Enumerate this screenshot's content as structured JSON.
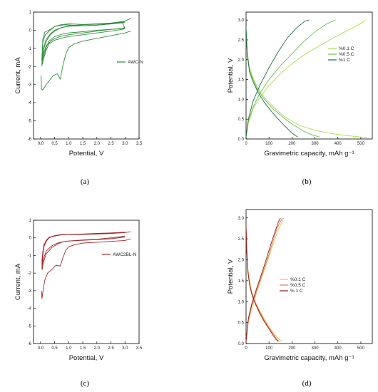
{
  "figure": {
    "captions": [
      "(a)",
      "(b)",
      "(c)",
      "(d)"
    ]
  },
  "chart_data": [
    {
      "id": "a",
      "type": "line",
      "caption": "(a)",
      "xlabel": "Potential, V",
      "ylabel": "Current, mA",
      "xlim": [
        -0.25,
        3.5
      ],
      "ylim": [
        -6,
        1
      ],
      "xticks": [
        0.0,
        0.5,
        1.0,
        1.5,
        2.0,
        2.5,
        3.0,
        3.5
      ],
      "yticks": [
        1,
        0,
        -1,
        -2,
        -3,
        -4,
        -5,
        -6
      ],
      "grid": false,
      "legend_position": "right",
      "series": [
        {
          "name": "AWC-N",
          "color": "#2e8b3c",
          "curves": [
            {
              "x": [
                0.02,
                0.03,
                0.06,
                0.1,
                0.2,
                0.3,
                0.45,
                0.6,
                0.7,
                0.8,
                0.9,
                1.0,
                1.2,
                1.5,
                2.0,
                2.5,
                3.0,
                3.2
              ],
              "y": [
                -2.5,
                -3.2,
                -3.3,
                -3.25,
                -3.0,
                -2.8,
                -2.5,
                -2.4,
                -2.7,
                -1.9,
                -1.3,
                -0.95,
                -0.75,
                -0.6,
                -0.45,
                -0.3,
                -0.15,
                -0.05
              ]
            },
            {
              "x": [
                0.05,
                0.05,
                0.1,
                0.2,
                0.4,
                0.6,
                0.8,
                1.0,
                1.5,
                2.0,
                2.5,
                2.9,
                3.0
              ],
              "y": [
                -1.6,
                -1.7,
                -1.3,
                -0.85,
                -0.55,
                -0.4,
                -0.3,
                -0.25,
                -0.15,
                -0.05,
                0.05,
                0.1,
                0.15
              ]
            },
            {
              "x": [
                0.05,
                0.07,
                0.1,
                0.2,
                0.3,
                0.5,
                0.8,
                1.0,
                1.5,
                2.0,
                2.5,
                2.9,
                3.0
              ],
              "y": [
                -1.9,
                -1.85,
                -1.6,
                -1.1,
                -0.75,
                -0.55,
                -0.42,
                -0.35,
                -0.25,
                -0.15,
                -0.05,
                0.05,
                0.1
              ]
            },
            {
              "x": [
                0.05,
                0.05,
                0.1,
                0.2,
                0.3,
                0.5,
                0.8,
                1.0,
                1.5,
                2.0,
                2.5,
                3.0
              ],
              "y": [
                -2.0,
                -1.8,
                -1.45,
                -0.95,
                -0.6,
                -0.35,
                -0.2,
                -0.15,
                -0.08,
                0.0,
                0.05,
                0.1
              ]
            },
            {
              "x": [
                0.05,
                0.08,
                0.15,
                0.3,
                0.5,
                0.7,
                0.9,
                1.1,
                1.5,
                2.0,
                2.5,
                3.0
              ],
              "y": [
                -1.6,
                -0.5,
                -0.1,
                0.0,
                0.2,
                0.27,
                0.3,
                0.28,
                0.25,
                0.28,
                0.35,
                0.42
              ]
            },
            {
              "x": [
                0.05,
                0.08,
                0.15,
                0.3,
                0.5,
                0.7,
                1.0,
                1.5,
                2.0,
                2.5,
                3.0,
                3.2
              ],
              "y": [
                -1.5,
                -0.7,
                -0.3,
                -0.05,
                0.2,
                0.3,
                0.35,
                0.32,
                0.35,
                0.4,
                0.5,
                0.65
              ]
            },
            {
              "x": [
                0.05,
                0.1,
                0.2,
                0.35,
                0.5,
                0.75,
                1.0,
                1.5,
                2.0,
                2.5,
                2.95,
                3.0
              ],
              "y": [
                -1.8,
                -1.0,
                -0.5,
                -0.2,
                0.0,
                0.15,
                0.22,
                0.25,
                0.28,
                0.35,
                0.45,
                0.5
              ]
            },
            {
              "x": [
                0.05,
                0.1,
                0.2,
                0.35,
                0.5,
                0.7,
                1.0,
                1.5,
                2.0,
                2.5,
                2.9,
                3.0
              ],
              "y": [
                -1.7,
                -1.1,
                -0.6,
                -0.25,
                -0.05,
                0.12,
                0.25,
                0.3,
                0.33,
                0.38,
                0.45,
                0.1
              ]
            }
          ]
        }
      ]
    },
    {
      "id": "b",
      "type": "line",
      "caption": "(b)",
      "xlabel": "Gravimetric capacity, mAh g⁻¹",
      "ylabel": "Potential, V",
      "xlim": [
        0,
        550
      ],
      "ylim": [
        0,
        3.2
      ],
      "xticks": [
        0,
        100,
        200,
        300,
        400,
        500
      ],
      "yticks": [
        0.0,
        0.5,
        1.0,
        1.5,
        2.0,
        2.5,
        3.0
      ],
      "grid": false,
      "legend_position": "right",
      "series": [
        {
          "name": "%0.1 C",
          "color": "#a8e04a",
          "curves": [
            {
              "x": [
                0,
                5,
                15,
                30,
                50,
                80,
                120,
                170,
                230,
                300,
                380,
                450,
                500,
                530
              ],
              "y": [
                2.8,
                2.2,
                1.8,
                1.55,
                1.3,
                1.05,
                0.8,
                0.55,
                0.35,
                0.22,
                0.13,
                0.08,
                0.05,
                0.03
              ]
            },
            {
              "x": [
                0,
                10,
                30,
                60,
                100,
                150,
                200,
                260,
                320,
                380,
                430,
                480,
                510,
                520
              ],
              "y": [
                0.05,
                0.4,
                0.75,
                1.05,
                1.35,
                1.65,
                1.9,
                2.15,
                2.35,
                2.55,
                2.7,
                2.85,
                2.95,
                3.0
              ]
            }
          ]
        },
        {
          "name": "%0.5 C",
          "color": "#70c04a",
          "curves": [
            {
              "x": [
                0,
                5,
                15,
                30,
                50,
                80,
                120,
                160,
                200,
                250,
                290,
                320
              ],
              "y": [
                2.8,
                2.2,
                1.75,
                1.5,
                1.25,
                1.0,
                0.75,
                0.55,
                0.38,
                0.2,
                0.1,
                0.05
              ]
            },
            {
              "x": [
                0,
                10,
                30,
                60,
                100,
                150,
                200,
                250,
                300,
                350,
                390
              ],
              "y": [
                0.05,
                0.45,
                0.8,
                1.15,
                1.5,
                1.85,
                2.15,
                2.45,
                2.7,
                2.9,
                3.0
              ]
            }
          ]
        },
        {
          "name": "%1 C",
          "color": "#1f6b48",
          "curves": [
            {
              "x": [
                0,
                5,
                15,
                30,
                50,
                80,
                110,
                140,
                170,
                200,
                225
              ],
              "y": [
                2.8,
                2.15,
                1.7,
                1.45,
                1.2,
                0.92,
                0.7,
                0.5,
                0.32,
                0.15,
                0.05
              ]
            },
            {
              "x": [
                0,
                10,
                30,
                60,
                100,
                140,
                180,
                220,
                255,
                275
              ],
              "y": [
                0.05,
                0.5,
                0.95,
                1.35,
                1.8,
                2.2,
                2.55,
                2.8,
                2.97,
                3.0
              ]
            }
          ]
        }
      ]
    },
    {
      "id": "c",
      "type": "line",
      "caption": "(c)",
      "xlabel": "Potential, V",
      "ylabel": "Current, mA",
      "xlim": [
        -0.25,
        3.5
      ],
      "ylim": [
        -6,
        1
      ],
      "xticks": [
        0.0,
        0.5,
        1.0,
        1.5,
        2.0,
        2.5,
        3.0,
        3.5
      ],
      "yticks": [
        1,
        0,
        -1,
        -2,
        -3,
        -4,
        -5,
        -6
      ],
      "grid": false,
      "legend_position": "right",
      "series": [
        {
          "name": "AWC2BL-N",
          "color": "#a0282a",
          "curves": [
            {
              "x": [
                0.03,
                0.05,
                0.08,
                0.15,
                0.25,
                0.4,
                0.55,
                0.7,
                0.8,
                0.9,
                1.0,
                1.2,
                1.5,
                2.0,
                2.5,
                3.0,
                3.2
              ],
              "y": [
                -3.0,
                -3.45,
                -3.1,
                -2.4,
                -2.0,
                -1.8,
                -1.55,
                -1.6,
                -1.1,
                -0.7,
                -0.5,
                -0.4,
                -0.3,
                -0.25,
                -0.2,
                -0.15,
                -0.05
              ]
            },
            {
              "x": [
                0.05,
                0.06,
                0.1,
                0.2,
                0.4,
                0.6,
                0.8,
                1.0,
                1.5,
                2.0,
                2.5,
                3.0
              ],
              "y": [
                -1.5,
                -1.8,
                -1.4,
                -0.9,
                -0.55,
                -0.35,
                -0.22,
                -0.18,
                -0.12,
                -0.08,
                0.0,
                0.1
              ]
            },
            {
              "x": [
                0.05,
                0.07,
                0.1,
                0.2,
                0.4,
                0.6,
                0.8,
                1.0,
                1.5,
                2.0,
                2.5,
                3.0
              ],
              "y": [
                -1.3,
                -1.5,
                -1.2,
                -0.75,
                -0.45,
                -0.3,
                -0.22,
                -0.18,
                -0.14,
                -0.1,
                -0.05,
                0.05
              ]
            },
            {
              "x": [
                0.05,
                0.08,
                0.12,
                0.2,
                0.3,
                0.5,
                0.7,
                1.0,
                1.5,
                2.0,
                2.5,
                3.0,
                3.2
              ],
              "y": [
                -1.8,
                -1.0,
                -0.5,
                -0.2,
                0.0,
                0.12,
                0.18,
                0.2,
                0.2,
                0.22,
                0.25,
                0.3,
                0.35
              ]
            },
            {
              "x": [
                0.05,
                0.08,
                0.12,
                0.2,
                0.3,
                0.5,
                0.7,
                1.0,
                1.5,
                2.0,
                2.5,
                3.0
              ],
              "y": [
                -1.3,
                -0.8,
                -0.4,
                -0.15,
                0.02,
                0.1,
                0.16,
                0.2,
                0.22,
                0.25,
                0.28,
                0.32
              ]
            },
            {
              "x": [
                0.05,
                0.08,
                0.12,
                0.2,
                0.3,
                0.5,
                0.7,
                1.0,
                1.5,
                2.0,
                2.5,
                3.0
              ],
              "y": [
                -1.5,
                -0.9,
                -0.45,
                -0.15,
                0.03,
                0.12,
                0.17,
                0.19,
                0.2,
                0.22,
                0.25,
                0.3
              ]
            }
          ]
        }
      ]
    },
    {
      "id": "d",
      "type": "line",
      "caption": "(d)",
      "xlabel": "Gravimetric capacity, mAh g⁻¹",
      "ylabel": "Potential, V",
      "xlim": [
        0,
        550
      ],
      "ylim": [
        0,
        3.2
      ],
      "xticks": [
        0,
        100,
        200,
        300,
        400,
        500
      ],
      "yticks": [
        0.0,
        0.5,
        1.0,
        1.5,
        2.0,
        2.5,
        3.0
      ],
      "grid": false,
      "legend_position": "right",
      "series": [
        {
          "name": "%0.1 C",
          "color": "#f2c14e",
          "curves": [
            {
              "x": [
                0,
                3,
                8,
                15,
                25,
                40,
                60,
                80,
                100,
                120,
                140,
                155
              ],
              "y": [
                2.8,
                2.3,
                1.8,
                1.5,
                1.25,
                1.0,
                0.78,
                0.58,
                0.4,
                0.25,
                0.12,
                0.05
              ]
            },
            {
              "x": [
                0,
                10,
                25,
                45,
                70,
                95,
                120,
                140,
                155,
                165
              ],
              "y": [
                0.05,
                0.5,
                0.85,
                1.2,
                1.6,
                2.0,
                2.4,
                2.7,
                2.9,
                3.0
              ]
            }
          ]
        },
        {
          "name": "%0.5 C",
          "color": "#e07a5a",
          "curves": [
            {
              "x": [
                0,
                3,
                8,
                15,
                25,
                40,
                60,
                80,
                100,
                120,
                135,
                145
              ],
              "y": [
                2.8,
                2.25,
                1.75,
                1.45,
                1.2,
                0.98,
                0.75,
                0.55,
                0.38,
                0.22,
                0.1,
                0.05
              ]
            },
            {
              "x": [
                0,
                10,
                25,
                45,
                70,
                95,
                115,
                135,
                150,
                158
              ],
              "y": [
                0.05,
                0.55,
                0.9,
                1.25,
                1.65,
                2.05,
                2.4,
                2.75,
                2.92,
                3.0
              ]
            }
          ]
        },
        {
          "name": "% 1 C",
          "color": "#8b1a1a",
          "curves": [
            {
              "x": [
                0,
                3,
                8,
                15,
                25,
                40,
                60,
                80,
                100,
                115,
                130,
                140
              ],
              "y": [
                2.8,
                2.2,
                1.7,
                1.42,
                1.18,
                0.95,
                0.72,
                0.52,
                0.35,
                0.22,
                0.1,
                0.05
              ]
            },
            {
              "x": [
                0,
                10,
                25,
                45,
                70,
                90,
                110,
                128,
                142,
                150
              ],
              "y": [
                0.05,
                0.6,
                0.95,
                1.3,
                1.7,
                2.05,
                2.4,
                2.7,
                2.92,
                3.0
              ]
            }
          ]
        }
      ]
    }
  ]
}
